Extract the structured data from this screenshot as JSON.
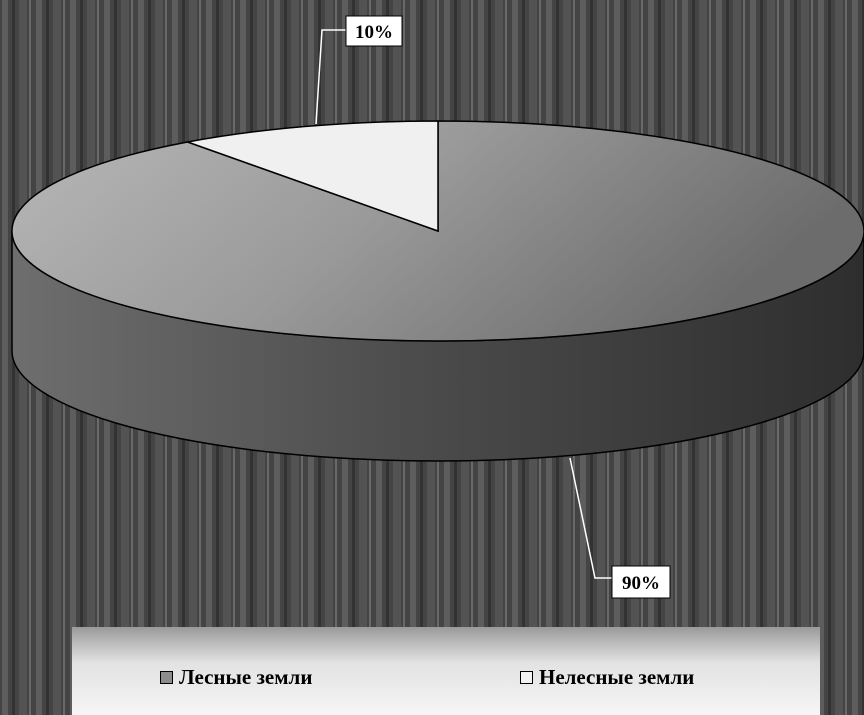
{
  "chart_data": {
    "type": "pie",
    "style": "3d",
    "title": "",
    "categories": [
      "Лесные земли",
      "Нелесные земли"
    ],
    "values": [
      90,
      10
    ],
    "data_labels": [
      "90%",
      "10%"
    ],
    "legend": {
      "placement": "bottom",
      "items": [
        "Лесные земли",
        "Нелесные земли"
      ]
    }
  },
  "colors": {
    "forest_slice": "#8c8c8c",
    "nonforest_slice": "#f2f2f2",
    "background": "#5a5a5a"
  }
}
